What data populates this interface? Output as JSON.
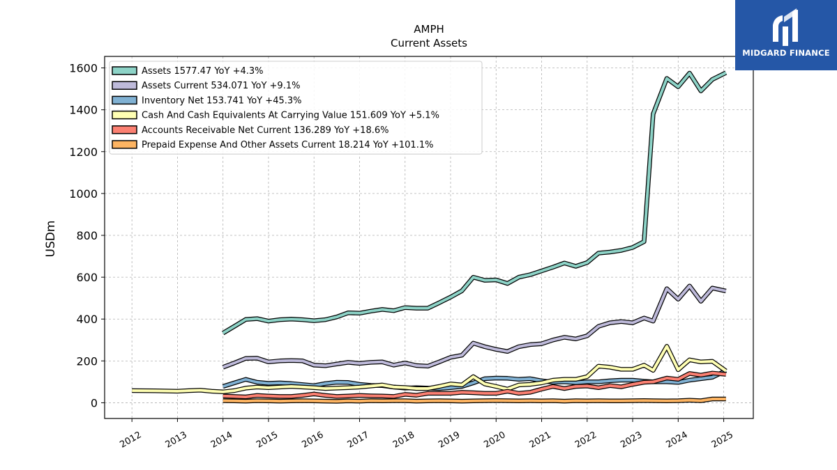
{
  "brand": {
    "name": "MIDGARD FINANCE",
    "color": "#2557a7"
  },
  "chart_data": {
    "type": "line",
    "title": "AMPH",
    "subtitle": "Current  Assets",
    "ylabel": "USDm",
    "xlabel": "",
    "ylim": [
      -75,
      1655
    ],
    "xlim": [
      2011.4,
      2025.65
    ],
    "yticks": [
      0,
      200,
      400,
      600,
      800,
      1000,
      1200,
      1400,
      1600
    ],
    "xticks": [
      "2012",
      "2013",
      "2014",
      "2015",
      "2016",
      "2017",
      "2018",
      "2019",
      "2020",
      "2021",
      "2022",
      "2023",
      "2024",
      "2025"
    ],
    "grid": true,
    "legend_position": "upper-left",
    "series": [
      {
        "name": "Assets  1577.47 YoY +4.3%",
        "color": "#8dd3c7",
        "points": [
          [
            2014.0,
            333
          ],
          [
            2014.25,
            365
          ],
          [
            2014.5,
            398
          ],
          [
            2014.75,
            402
          ],
          [
            2015.0,
            390
          ],
          [
            2015.25,
            397
          ],
          [
            2015.5,
            400
          ],
          [
            2015.75,
            397
          ],
          [
            2016.0,
            392
          ],
          [
            2016.25,
            397
          ],
          [
            2016.5,
            410
          ],
          [
            2016.75,
            430
          ],
          [
            2017.0,
            428
          ],
          [
            2017.25,
            438
          ],
          [
            2017.5,
            446
          ],
          [
            2017.75,
            440
          ],
          [
            2018.0,
            455
          ],
          [
            2018.25,
            452
          ],
          [
            2018.5,
            452
          ],
          [
            2018.75,
            478
          ],
          [
            2019.0,
            505
          ],
          [
            2019.25,
            535
          ],
          [
            2019.5,
            600
          ],
          [
            2019.75,
            585
          ],
          [
            2020.0,
            587
          ],
          [
            2020.25,
            570
          ],
          [
            2020.5,
            600
          ],
          [
            2020.75,
            612
          ],
          [
            2021.0,
            630
          ],
          [
            2021.25,
            648
          ],
          [
            2021.5,
            668
          ],
          [
            2021.75,
            652
          ],
          [
            2022.0,
            670
          ],
          [
            2022.25,
            715
          ],
          [
            2022.5,
            720
          ],
          [
            2022.75,
            728
          ],
          [
            2023.0,
            742
          ],
          [
            2023.25,
            770
          ],
          [
            2023.45,
            1380
          ],
          [
            2023.75,
            1550
          ],
          [
            2024.0,
            1510
          ],
          [
            2024.25,
            1575
          ],
          [
            2024.5,
            1490
          ],
          [
            2024.75,
            1545
          ],
          [
            2025.05,
            1577
          ]
        ]
      },
      {
        "name": "Assets Current  534.071 YoY +9.1%",
        "color": "#bebada",
        "points": [
          [
            2014.0,
            170
          ],
          [
            2014.25,
            190
          ],
          [
            2014.5,
            212
          ],
          [
            2014.75,
            213
          ],
          [
            2015.0,
            195
          ],
          [
            2015.25,
            200
          ],
          [
            2015.5,
            202
          ],
          [
            2015.75,
            200
          ],
          [
            2016.0,
            180
          ],
          [
            2016.25,
            177
          ],
          [
            2016.5,
            185
          ],
          [
            2016.75,
            193
          ],
          [
            2017.0,
            188
          ],
          [
            2017.25,
            193
          ],
          [
            2017.5,
            195
          ],
          [
            2017.75,
            180
          ],
          [
            2018.0,
            190
          ],
          [
            2018.25,
            178
          ],
          [
            2018.5,
            175
          ],
          [
            2018.75,
            195
          ],
          [
            2019.0,
            217
          ],
          [
            2019.25,
            227
          ],
          [
            2019.5,
            285
          ],
          [
            2019.75,
            268
          ],
          [
            2020.0,
            255
          ],
          [
            2020.25,
            245
          ],
          [
            2020.5,
            268
          ],
          [
            2020.75,
            278
          ],
          [
            2021.0,
            282
          ],
          [
            2021.25,
            300
          ],
          [
            2021.5,
            313
          ],
          [
            2021.75,
            305
          ],
          [
            2022.0,
            320
          ],
          [
            2022.25,
            365
          ],
          [
            2022.5,
            382
          ],
          [
            2022.75,
            388
          ],
          [
            2023.0,
            382
          ],
          [
            2023.25,
            405
          ],
          [
            2023.45,
            390
          ],
          [
            2023.75,
            545
          ],
          [
            2024.0,
            495
          ],
          [
            2024.25,
            558
          ],
          [
            2024.5,
            485
          ],
          [
            2024.75,
            548
          ],
          [
            2025.05,
            534
          ]
        ]
      },
      {
        "name": "Inventory Net  153.741 YoY +45.3%",
        "color": "#80b1d3",
        "points": [
          [
            2014.0,
            78
          ],
          [
            2014.25,
            95
          ],
          [
            2014.5,
            112
          ],
          [
            2014.75,
            98
          ],
          [
            2015.0,
            93
          ],
          [
            2015.25,
            95
          ],
          [
            2015.5,
            92
          ],
          [
            2015.75,
            87
          ],
          [
            2016.0,
            82
          ],
          [
            2016.25,
            92
          ],
          [
            2016.5,
            98
          ],
          [
            2016.75,
            97
          ],
          [
            2017.0,
            88
          ],
          [
            2017.25,
            83
          ],
          [
            2017.5,
            82
          ],
          [
            2017.75,
            75
          ],
          [
            2018.0,
            70
          ],
          [
            2018.25,
            72
          ],
          [
            2018.5,
            70
          ],
          [
            2018.75,
            68
          ],
          [
            2019.0,
            72
          ],
          [
            2019.25,
            78
          ],
          [
            2019.5,
            95
          ],
          [
            2019.75,
            115
          ],
          [
            2020.0,
            118
          ],
          [
            2020.25,
            117
          ],
          [
            2020.5,
            112
          ],
          [
            2020.75,
            115
          ],
          [
            2021.0,
            105
          ],
          [
            2021.25,
            98
          ],
          [
            2021.5,
            100
          ],
          [
            2021.75,
            96
          ],
          [
            2022.0,
            100
          ],
          [
            2022.25,
            100
          ],
          [
            2022.5,
            105
          ],
          [
            2022.75,
            108
          ],
          [
            2023.0,
            108
          ],
          [
            2023.25,
            103
          ],
          [
            2023.45,
            100
          ],
          [
            2023.75,
            100
          ],
          [
            2024.0,
            97
          ],
          [
            2024.25,
            108
          ],
          [
            2024.5,
            115
          ],
          [
            2024.75,
            122
          ],
          [
            2025.05,
            154
          ]
        ]
      },
      {
        "name": "Cash And Cash Equivalents At Carrying Value  151.609 YoY +5.1%",
        "color": "#ffffb3",
        "points": [
          [
            2012.0,
            58
          ],
          [
            2012.5,
            57
          ],
          [
            2013.0,
            55
          ],
          [
            2013.25,
            58
          ],
          [
            2013.5,
            60
          ],
          [
            2013.75,
            55
          ],
          [
            2014.0,
            52
          ],
          [
            2014.25,
            58
          ],
          [
            2014.5,
            70
          ],
          [
            2014.75,
            75
          ],
          [
            2015.0,
            72
          ],
          [
            2015.25,
            75
          ],
          [
            2015.5,
            78
          ],
          [
            2015.75,
            75
          ],
          [
            2016.0,
            72
          ],
          [
            2016.25,
            68
          ],
          [
            2016.5,
            70
          ],
          [
            2016.75,
            72
          ],
          [
            2017.0,
            75
          ],
          [
            2017.25,
            80
          ],
          [
            2017.5,
            85
          ],
          [
            2017.75,
            75
          ],
          [
            2018.0,
            73
          ],
          [
            2018.25,
            68
          ],
          [
            2018.5,
            68
          ],
          [
            2018.75,
            78
          ],
          [
            2019.0,
            90
          ],
          [
            2019.25,
            85
          ],
          [
            2019.5,
            125
          ],
          [
            2019.75,
            90
          ],
          [
            2020.0,
            78
          ],
          [
            2020.25,
            65
          ],
          [
            2020.5,
            85
          ],
          [
            2020.75,
            88
          ],
          [
            2021.0,
            95
          ],
          [
            2021.25,
            108
          ],
          [
            2021.5,
            112
          ],
          [
            2021.75,
            112
          ],
          [
            2022.0,
            125
          ],
          [
            2022.25,
            175
          ],
          [
            2022.5,
            170
          ],
          [
            2022.75,
            160
          ],
          [
            2023.0,
            160
          ],
          [
            2023.25,
            180
          ],
          [
            2023.45,
            155
          ],
          [
            2023.75,
            270
          ],
          [
            2024.0,
            158
          ],
          [
            2024.25,
            205
          ],
          [
            2024.5,
            195
          ],
          [
            2024.75,
            198
          ],
          [
            2025.05,
            152
          ]
        ]
      },
      {
        "name": "Accounts Receivable Net Current  136.289 YoY +18.6%",
        "color": "#fb8072",
        "points": [
          [
            2014.0,
            32
          ],
          [
            2014.25,
            30
          ],
          [
            2014.5,
            28
          ],
          [
            2014.75,
            35
          ],
          [
            2015.0,
            32
          ],
          [
            2015.25,
            30
          ],
          [
            2015.5,
            30
          ],
          [
            2015.75,
            35
          ],
          [
            2016.0,
            42
          ],
          [
            2016.25,
            35
          ],
          [
            2016.5,
            30
          ],
          [
            2016.75,
            32
          ],
          [
            2017.0,
            35
          ],
          [
            2017.25,
            33
          ],
          [
            2017.5,
            32
          ],
          [
            2017.75,
            30
          ],
          [
            2018.0,
            40
          ],
          [
            2018.25,
            36
          ],
          [
            2018.5,
            45
          ],
          [
            2018.75,
            45
          ],
          [
            2019.0,
            45
          ],
          [
            2019.25,
            50
          ],
          [
            2019.5,
            48
          ],
          [
            2019.75,
            45
          ],
          [
            2020.0,
            45
          ],
          [
            2020.25,
            55
          ],
          [
            2020.5,
            45
          ],
          [
            2020.75,
            50
          ],
          [
            2021.0,
            65
          ],
          [
            2021.25,
            78
          ],
          [
            2021.5,
            68
          ],
          [
            2021.75,
            78
          ],
          [
            2022.0,
            80
          ],
          [
            2022.25,
            72
          ],
          [
            2022.5,
            82
          ],
          [
            2022.75,
            76
          ],
          [
            2023.0,
            88
          ],
          [
            2023.25,
            98
          ],
          [
            2023.45,
            100
          ],
          [
            2023.75,
            118
          ],
          [
            2024.0,
            112
          ],
          [
            2024.25,
            140
          ],
          [
            2024.5,
            132
          ],
          [
            2024.75,
            142
          ],
          [
            2025.05,
            136
          ]
        ]
      },
      {
        "name": "Prepaid Expense And Other Assets Current  18.214 YoY +101.1%",
        "color": "#fdb462",
        "points": [
          [
            2014.0,
            10
          ],
          [
            2014.25,
            9
          ],
          [
            2014.5,
            8
          ],
          [
            2014.75,
            10
          ],
          [
            2015.0,
            9
          ],
          [
            2015.25,
            8
          ],
          [
            2015.5,
            9
          ],
          [
            2015.75,
            10
          ],
          [
            2016.0,
            9
          ],
          [
            2016.25,
            8
          ],
          [
            2016.5,
            7
          ],
          [
            2016.75,
            9
          ],
          [
            2017.0,
            8
          ],
          [
            2017.25,
            10
          ],
          [
            2017.5,
            9
          ],
          [
            2017.75,
            10
          ],
          [
            2018.0,
            10
          ],
          [
            2018.25,
            8
          ],
          [
            2018.5,
            9
          ],
          [
            2018.75,
            10
          ],
          [
            2019.0,
            9
          ],
          [
            2019.25,
            8
          ],
          [
            2019.5,
            9
          ],
          [
            2019.75,
            10
          ],
          [
            2020.0,
            11
          ],
          [
            2020.25,
            10
          ],
          [
            2020.5,
            9
          ],
          [
            2020.75,
            10
          ],
          [
            2021.0,
            9
          ],
          [
            2021.25,
            10
          ],
          [
            2021.5,
            8
          ],
          [
            2021.75,
            10
          ],
          [
            2022.0,
            9
          ],
          [
            2022.25,
            10
          ],
          [
            2022.5,
            9
          ],
          [
            2022.75,
            9
          ],
          [
            2023.0,
            10
          ],
          [
            2023.25,
            11
          ],
          [
            2023.45,
            10
          ],
          [
            2023.75,
            9
          ],
          [
            2024.0,
            10
          ],
          [
            2024.25,
            12
          ],
          [
            2024.5,
            10
          ],
          [
            2024.75,
            18
          ],
          [
            2025.05,
            18
          ]
        ]
      }
    ]
  }
}
